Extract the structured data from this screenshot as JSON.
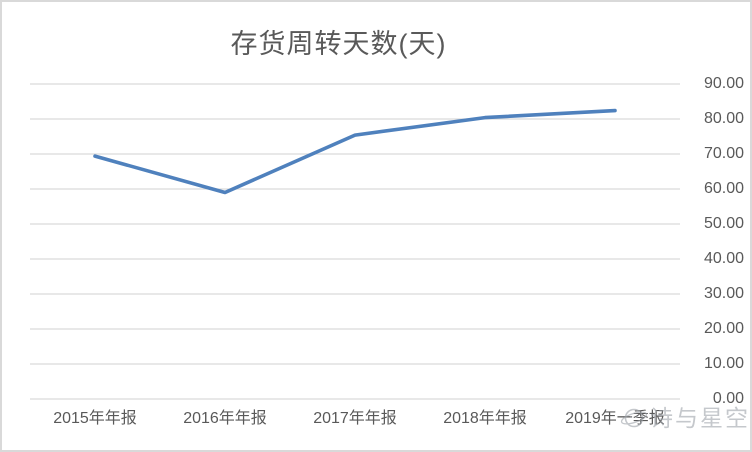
{
  "chart_data": {
    "type": "line",
    "title": "存货周转天数(天)",
    "categories": [
      "2015年年报",
      "2016年年报",
      "2017年年报",
      "2018年年报",
      "2019年一季报"
    ],
    "series": [
      {
        "name": "存货周转天数",
        "values": [
          69.4,
          59.0,
          75.4,
          80.4,
          82.4
        ]
      }
    ],
    "ylim": [
      0,
      90
    ],
    "y_ticks": [
      "0.00",
      "10.00",
      "20.00",
      "30.00",
      "40.00",
      "50.00",
      "60.00",
      "70.00",
      "80.00",
      "90.00"
    ],
    "y_axis_side": "right",
    "grid": true,
    "legend": "none",
    "line_color": "#4F81BD"
  },
  "watermark": {
    "text": "诗与星空",
    "icon": "saturn-planet-icon"
  },
  "colors": {
    "line": "#4F81BD",
    "gridline": "#D9D9D9",
    "text": "#595959",
    "border": "#D9D9D9",
    "watermark": "#9EA3AA"
  }
}
